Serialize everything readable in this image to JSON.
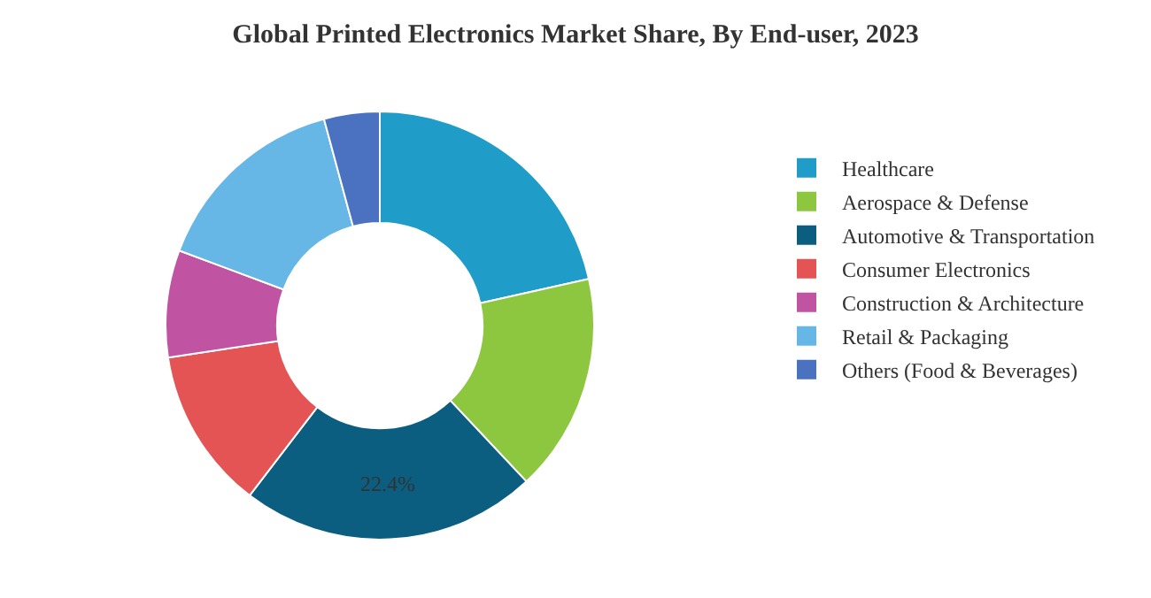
{
  "chart_data": {
    "type": "donut",
    "title": "Global Printed Electronics Market Share, By End-user, 2023",
    "categories": [
      "Healthcare",
      "Aerospace & Defense",
      "Automotive & Transportation",
      "Consumer Electronics",
      "Construction & Architecture",
      "Retail & Packaging",
      "Others (Food & Beverages)"
    ],
    "values": [
      21.5,
      16.5,
      22.4,
      12.2,
      8.1,
      15.1,
      4.2
    ],
    "value_labels": [
      null,
      null,
      "22.4%",
      null,
      null,
      null,
      null
    ],
    "colors": [
      "#1f9cc7",
      "#8dc63f",
      "#0b5e80",
      "#e45454",
      "#c153a3",
      "#67b7e6",
      "#4a72c1"
    ],
    "legend": "right"
  }
}
